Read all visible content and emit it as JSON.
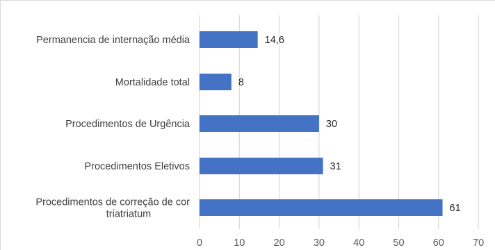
{
  "chart_data": {
    "type": "bar",
    "orientation": "horizontal",
    "categories": [
      "Permanencia de internação média",
      "Mortalidade total",
      "Procedimentos de Urgência",
      "Procedimentos Eletivos",
      "Procedimentos de correção de cor triatriatum"
    ],
    "category_lines": [
      [
        "Permanencia de internação média"
      ],
      [
        "Mortalidade total"
      ],
      [
        "Procedimentos de Urgência"
      ],
      [
        "Procedimentos Eletivos"
      ],
      [
        "Procedimentos de correção de cor",
        "triatriatum"
      ]
    ],
    "values": [
      14.6,
      8,
      30,
      31,
      61
    ],
    "value_labels": [
      "14,6",
      "8",
      "30",
      "31",
      "61"
    ],
    "xlim": [
      0,
      70
    ],
    "xticks": [
      0,
      10,
      20,
      30,
      40,
      50,
      60,
      70
    ],
    "grid": true,
    "legend": "none",
    "bar_color": "#4472c4",
    "title": "",
    "xlabel": "",
    "ylabel": ""
  }
}
